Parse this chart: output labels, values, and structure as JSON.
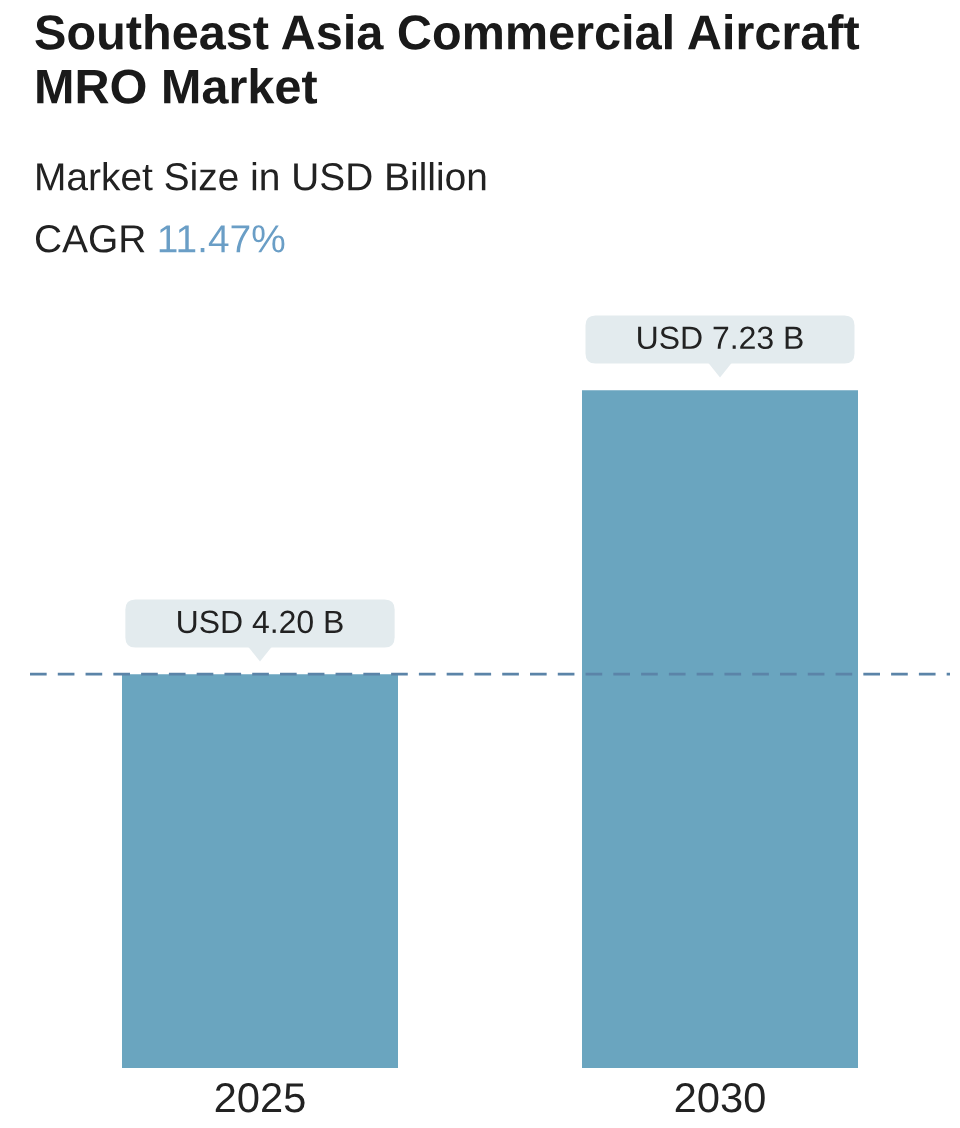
{
  "chart_data": {
    "type": "bar",
    "title": "Southeast Asia Commercial Aircraft MRO Market",
    "subtitle": "Market Size in USD Billion",
    "annotations": [
      "CAGR",
      "11.47%"
    ],
    "categories": [
      "2025",
      "2030"
    ],
    "values": [
      4.2,
      7.23
    ],
    "color": "#6aa5bf",
    "value_labels": [
      "USD 4.20 B",
      "USD 7.23 B"
    ],
    "ref_lines": [
      {
        "axis": "y",
        "value": 4.2,
        "color": "#5b84a8",
        "line_style": "dashed"
      }
    ],
    "grid": false
  }
}
